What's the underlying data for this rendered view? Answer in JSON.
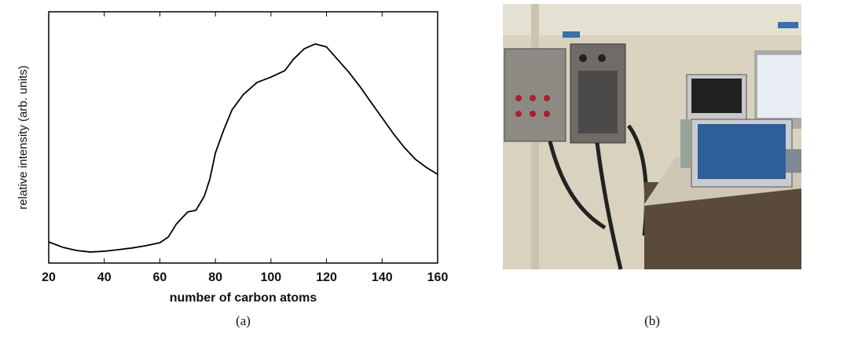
{
  "chart_data": {
    "type": "line",
    "x_label": "number of carbon atoms",
    "y_label": "relative intensity (arb. units)",
    "x": [
      20,
      25,
      30,
      35,
      40,
      45,
      50,
      55,
      60,
      63,
      66,
      70,
      73,
      76,
      78,
      80,
      83,
      86,
      90,
      95,
      100,
      105,
      108,
      112,
      116,
      120,
      124,
      128,
      132,
      136,
      140,
      144,
      148,
      152,
      156,
      160
    ],
    "values": [
      8.4,
      6.3,
      5,
      4.4,
      4.7,
      5.3,
      6,
      6.9,
      8.1,
      10.3,
      15.6,
      20.3,
      21,
      26.6,
      33.4,
      43.8,
      53,
      61,
      67,
      71.9,
      74,
      76.6,
      81,
      85.3,
      87.2,
      86,
      81,
      76,
      70.3,
      64,
      57.8,
      51.6,
      46,
      41.3,
      38,
      35.3
    ],
    "color": "#000000",
    "xlim": [
      20,
      160
    ],
    "xticks": [
      20,
      40,
      60,
      80,
      100,
      120,
      140,
      160
    ],
    "ylim": [
      0,
      100
    ],
    "grid": false
  },
  "panel_labels": [
    "(a)",
    "(b)"
  ]
}
